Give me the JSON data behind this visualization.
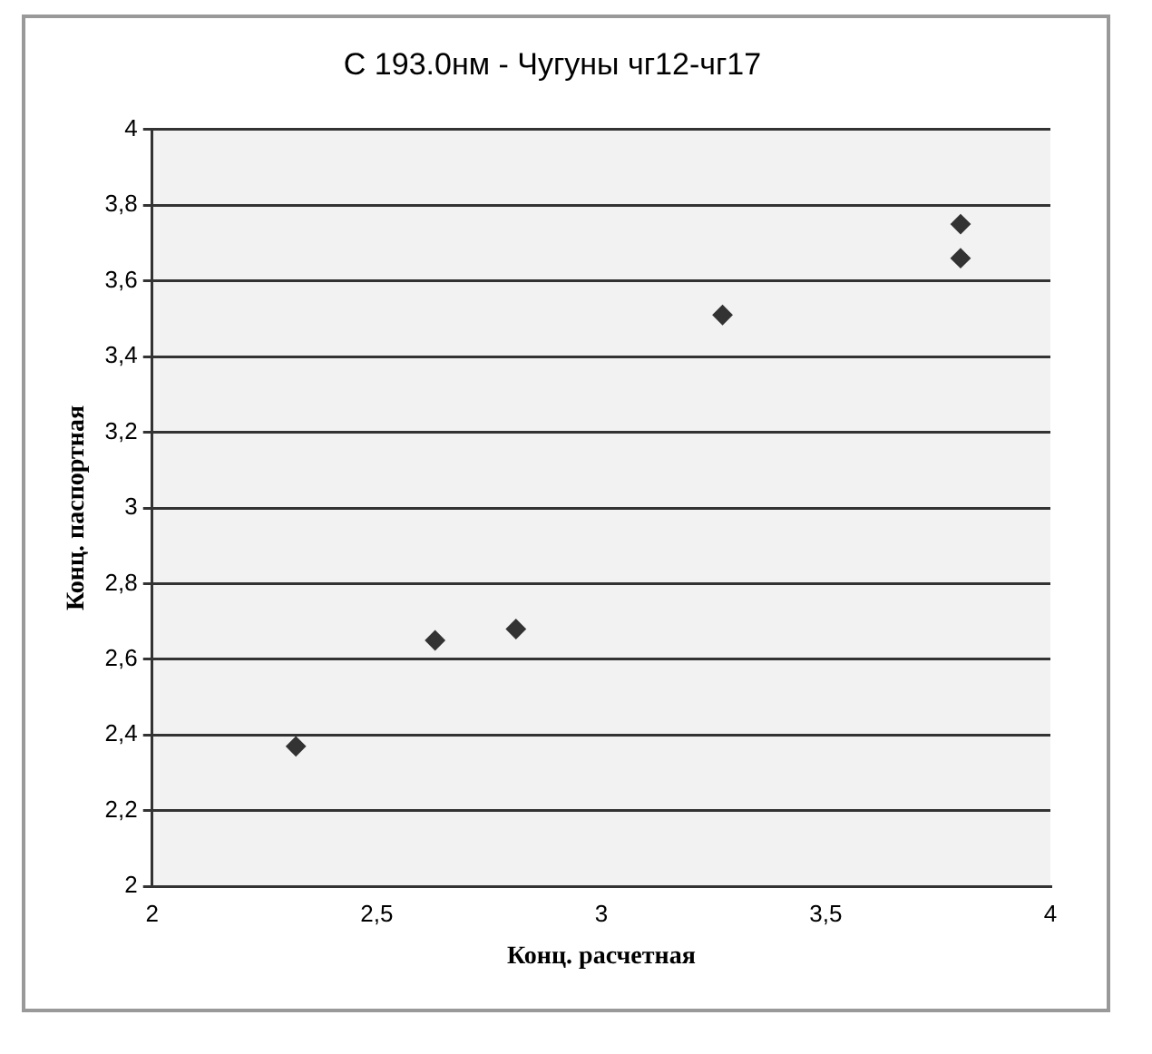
{
  "chart_data": {
    "type": "scatter",
    "title": "С 193.0нм - Чугуны чг12-чг17",
    "xlabel": "Конц. расчетная",
    "ylabel": "Конц. паспортная",
    "x": [
      2.32,
      2.63,
      2.81,
      3.27,
      3.8,
      3.8
    ],
    "values": [
      2.37,
      2.65,
      2.68,
      3.51,
      3.66,
      3.75
    ],
    "color": "#333333",
    "marker": "diamond",
    "grid": "y",
    "legend": false,
    "xlim": [
      2,
      4
    ],
    "xticks": [
      2,
      {
        "value": 2.5,
        "label": "2,5"
      },
      3,
      {
        "value": 3.5,
        "label": "3,5"
      },
      4
    ],
    "ylim": [
      2,
      4
    ],
    "yticks": [
      2,
      {
        "value": 2.2,
        "label": "2,2"
      },
      {
        "value": 2.4,
        "label": "2,4"
      },
      {
        "value": 2.6,
        "label": "2,6"
      },
      {
        "value": 2.8,
        "label": "2,8"
      },
      3,
      {
        "value": 3.2,
        "label": "3,2"
      },
      {
        "value": 3.4,
        "label": "3,4"
      },
      {
        "value": 3.6,
        "label": "3,6"
      },
      {
        "value": 3.8,
        "label": "3,8"
      },
      4
    ]
  }
}
